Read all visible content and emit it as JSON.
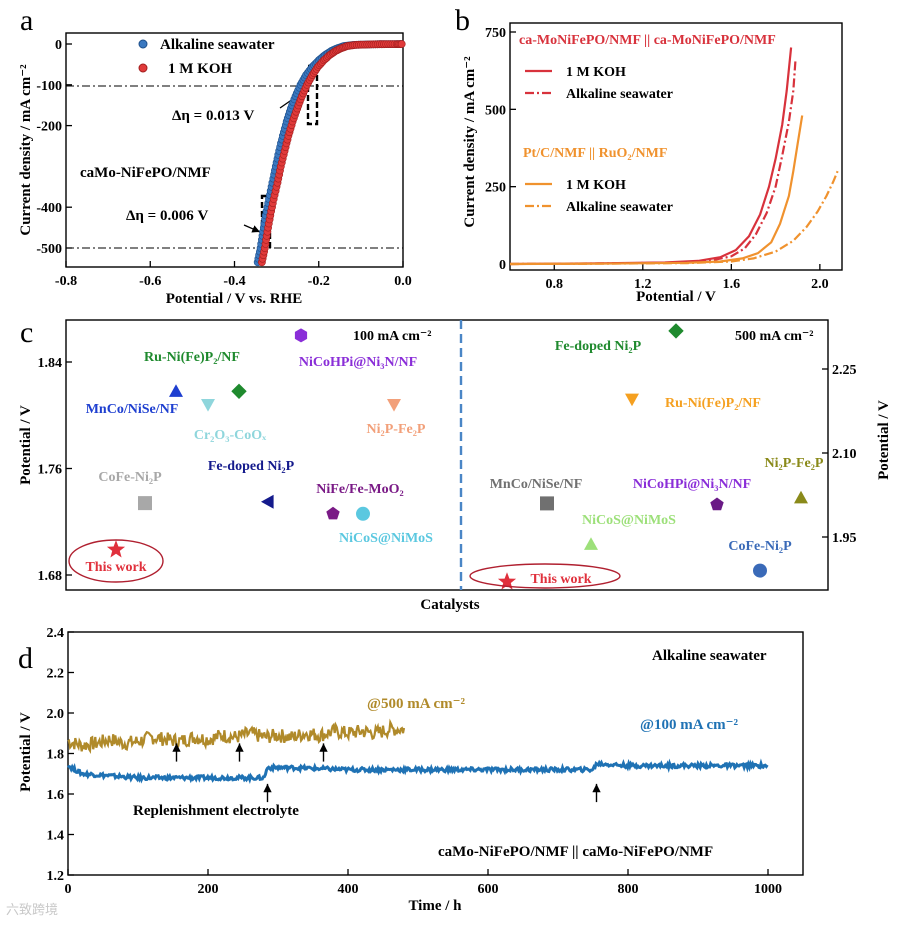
{
  "chart_data": [
    {
      "panel": "a",
      "type": "scatter",
      "title": "",
      "xlabel": "Potential / V vs. RHE",
      "ylabel": "Current density / mA cm⁻²",
      "xlim": [
        -0.8,
        0.0
      ],
      "ylim": [
        -540,
        10
      ],
      "xticks": [
        -0.8,
        -0.6,
        -0.4,
        -0.2,
        0.0
      ],
      "xtick_labels": [
        "-0.8",
        "-0.6",
        "-0.4",
        "-0.2",
        "0.0"
      ],
      "yticks": [
        0,
        -100,
        -200,
        -400,
        -500
      ],
      "ytick_labels": [
        "0",
        "-100",
        "-200",
        "-400",
        "-500"
      ],
      "annotations": [
        "Δη = 0.013 V",
        "Δη = 0.006 V",
        "caMo-NiFePO/NMF"
      ],
      "series": [
        {
          "name": "Alkaline seawater",
          "color": "#3a78c0",
          "x": [
            -0.345,
            -0.338,
            -0.332,
            -0.326,
            -0.318,
            -0.31,
            -0.302,
            -0.294,
            -0.285,
            -0.276,
            -0.266,
            -0.255,
            -0.243,
            -0.23,
            -0.215,
            -0.2,
            -0.185,
            -0.17,
            -0.155,
            -0.14,
            -0.12,
            -0.1,
            -0.08,
            -0.06,
            -0.04,
            -0.02,
            -0.005
          ],
          "y": [
            -535,
            -500,
            -460,
            -420,
            -380,
            -340,
            -300,
            -262,
            -225,
            -190,
            -158,
            -128,
            -100,
            -76,
            -56,
            -40,
            -27,
            -17,
            -10,
            -5,
            -2.5,
            -1.5,
            -1,
            -0.5,
            -0.3,
            -0.2,
            -0.1
          ]
        },
        {
          "name": "1 M KOH",
          "color": "#e03a3a",
          "x": [
            -0.335,
            -0.328,
            -0.322,
            -0.315,
            -0.307,
            -0.298,
            -0.29,
            -0.281,
            -0.272,
            -0.262,
            -0.251,
            -0.24,
            -0.228,
            -0.215,
            -0.202,
            -0.188,
            -0.174,
            -0.16,
            -0.146,
            -0.132,
            -0.115,
            -0.095,
            -0.075,
            -0.055,
            -0.035,
            -0.015,
            -0.003
          ],
          "y": [
            -535,
            -500,
            -460,
            -420,
            -380,
            -340,
            -300,
            -262,
            -225,
            -190,
            -158,
            -128,
            -100,
            -76,
            -56,
            -40,
            -27,
            -17,
            -10,
            -5,
            -2.5,
            -1.5,
            -1,
            -0.5,
            -0.3,
            -0.2,
            -0.1
          ]
        }
      ]
    },
    {
      "panel": "b",
      "type": "line",
      "xlabel": "Potential / V",
      "ylabel": "Current density / mA cm⁻²",
      "xlim": [
        0.6,
        2.1
      ],
      "ylim": [
        -10,
        760
      ],
      "xticks": [
        0.8,
        1.2,
        1.6,
        2.0
      ],
      "xtick_labels": [
        "0.8",
        "1.2",
        "1.6",
        "2.0"
      ],
      "yticks": [
        0,
        250,
        500,
        750
      ],
      "ytick_labels": [
        "0",
        "250",
        "500",
        "750"
      ],
      "legend_title_1": "ca-MoNiFePO/NMF || ca-MoNiFePO/NMF",
      "legend_title_2": "Pt/C/NMF || RuO₂/NMF",
      "series": [
        {
          "name": "1 M KOH",
          "group": "ca-MoNiFePO/NMF || ca-MoNiFePO/NMF",
          "color": "#d8323c",
          "dash": false,
          "x": [
            0.6,
            1.0,
            1.3,
            1.45,
            1.55,
            1.62,
            1.68,
            1.73,
            1.77,
            1.8,
            1.83,
            1.85,
            1.87
          ],
          "y": [
            0,
            2,
            5,
            10,
            22,
            45,
            90,
            160,
            250,
            340,
            450,
            560,
            700
          ]
        },
        {
          "name": "Alkaline seawater",
          "group": "ca-MoNiFePO/NMF || ca-MoNiFePO/NMF",
          "color": "#d8323c",
          "dash": true,
          "x": [
            0.6,
            1.0,
            1.3,
            1.5,
            1.6,
            1.66,
            1.71,
            1.76,
            1.8,
            1.83,
            1.86,
            1.88,
            1.89
          ],
          "y": [
            0,
            2,
            4,
            10,
            25,
            50,
            95,
            165,
            250,
            350,
            460,
            560,
            660
          ]
        },
        {
          "name": "1 M KOH",
          "group": "Pt/C/NMF || RuO₂/NMF",
          "color": "#f0922e",
          "dash": false,
          "x": [
            0.6,
            1.0,
            1.4,
            1.55,
            1.65,
            1.72,
            1.78,
            1.82,
            1.86,
            1.88,
            1.9,
            1.92
          ],
          "y": [
            0,
            1,
            4,
            8,
            18,
            35,
            70,
            130,
            220,
            300,
            390,
            480
          ]
        },
        {
          "name": "Alkaline seawater",
          "group": "Pt/C/NMF || RuO₂/NMF",
          "color": "#f0922e",
          "dash": true,
          "x": [
            0.6,
            1.0,
            1.4,
            1.6,
            1.7,
            1.8,
            1.88,
            1.94,
            1.99,
            2.03,
            2.06,
            2.08
          ],
          "y": [
            0,
            1,
            3,
            8,
            18,
            40,
            75,
            120,
            170,
            220,
            265,
            300
          ]
        }
      ]
    },
    {
      "panel": "c",
      "type": "scatter",
      "xlabel": "Catalysts",
      "ylabel_left": "Potential / V",
      "ylabel_right": "Potential / V",
      "left_title": "100 mA cm⁻²",
      "right_title": "500 mA cm⁻²",
      "left_ylim": [
        1.672,
        1.864
      ],
      "left_yticks": [
        1.68,
        1.76,
        1.84
      ],
      "left_ytick_labels": [
        "1.68",
        "1.76",
        "1.84"
      ],
      "right_ylim": [
        1.86,
        2.34
      ],
      "right_yticks": [
        1.95,
        2.1,
        2.25
      ],
      "right_ytick_labels": [
        "1.95",
        "2.10",
        "2.25"
      ],
      "left_points": [
        {
          "label": "This work",
          "value": 1.699,
          "marker": "star",
          "color": "#e0303c",
          "label_color": "#e0303c"
        },
        {
          "label": "CoFe-Ni₂P",
          "value": 1.734,
          "marker": "square",
          "color": "#a8a8a8",
          "label_color": "#a8a8a8"
        },
        {
          "label": "MnCo/NiSe/NF",
          "value": 1.818,
          "marker": "triangle-up",
          "color": "#1e3fd0",
          "label_color": "#1e3fd0"
        },
        {
          "label": "Cr₂O₃-CoOₓ",
          "value": 1.808,
          "marker": "triangle-down",
          "color": "#8fd6dc",
          "label_color": "#8fd6dc"
        },
        {
          "label": "Ru-Ni(Fe)P₂/NF",
          "value": 1.818,
          "marker": "diamond",
          "color": "#1f8a2e",
          "label_color": "#1f8a2e"
        },
        {
          "label": "Fe-doped Ni₂P",
          "value": 1.735,
          "marker": "triangle-left",
          "color": "#141a8c",
          "label_color": "#141a8c"
        },
        {
          "label": "NiCoHPi@Ni₃N/NF",
          "value": 1.86,
          "marker": "hexagon",
          "color": "#8a2ed8",
          "label_color": "#8a2ed8"
        },
        {
          "label": "NiFe/Fe-MoO₂",
          "value": 1.726,
          "marker": "pentagon",
          "color": "#7a1a86",
          "label_color": "#7a1a86"
        },
        {
          "label": "NiCoS@NiMoS",
          "value": 1.726,
          "marker": "circle",
          "color": "#5bc8e0",
          "label_color": "#5bc8e0"
        },
        {
          "label": "Ni₂P-Fe₂P",
          "value": 1.808,
          "marker": "triangle-down",
          "color": "#f2a07a",
          "label_color": "#f2a07a"
        }
      ],
      "right_points": [
        {
          "label": "This work",
          "value": 1.87,
          "marker": "star",
          "color": "#e0303c",
          "label_color": "#e0303c"
        },
        {
          "label": "MnCo/NiSe/NF",
          "value": 2.01,
          "marker": "square",
          "color": "#707070",
          "label_color": "#707070"
        },
        {
          "label": "NiCoS@NiMoS",
          "value": 1.937,
          "marker": "triangle-up",
          "color": "#9de07a",
          "label_color": "#9de07a"
        },
        {
          "label": "Fe-doped Ni₂P",
          "value": 2.318,
          "marker": "diamond",
          "color": "#1f8a2e",
          "label_color": "#1f8a2e"
        },
        {
          "label": "Ru-Ni(Fe)P₂/NF",
          "value": 2.196,
          "marker": "triangle-down",
          "color": "#f5a020",
          "label_color": "#f5a020"
        },
        {
          "label": "NiCoHPi@Ni₃N/NF",
          "value": 2.008,
          "marker": "pentagon",
          "color": "#6a1a86",
          "label_color": "#8a2ed8"
        },
        {
          "label": "CoFe-Ni₂P",
          "value": 1.89,
          "marker": "circle",
          "color": "#3a6ab8",
          "label_color": "#3a6ab8"
        },
        {
          "label": "Ni₂P-Fe₂P",
          "value": 2.02,
          "marker": "triangle-up",
          "color": "#8a8a1a",
          "label_color": "#8a8a1a"
        }
      ]
    },
    {
      "panel": "d",
      "type": "line",
      "title": "Alkaline seawater",
      "subtitle": "caMo-NiFePO/NMF || caMo-NiFePO/NMF",
      "xlabel": "Time / h",
      "ylabel": "Potential / V",
      "xlim": [
        0,
        1050
      ],
      "ylim": [
        1.2,
        2.4
      ],
      "xticks": [
        0,
        200,
        400,
        600,
        800,
        1000
      ],
      "xtick_labels": [
        "0",
        "200",
        "400",
        "600",
        "800",
        "1000"
      ],
      "yticks": [
        1.2,
        1.4,
        1.6,
        1.8,
        2.0,
        2.2,
        2.4
      ],
      "ytick_labels": [
        "1.2",
        "1.4",
        "1.6",
        "1.8",
        "2.0",
        "2.2",
        "2.4"
      ],
      "annotation": "Replenishment electrolyte",
      "arrows_500": [
        155,
        245,
        365
      ],
      "arrows_100": [
        285,
        755
      ],
      "series": [
        {
          "name": "@500 mA cm⁻²",
          "color": "#b08a2a",
          "x": [
            0,
            20,
            40,
            60,
            80,
            100,
            120,
            140,
            160,
            180,
            200,
            220,
            240,
            260,
            280,
            300,
            320,
            340,
            360,
            380,
            400,
            420,
            440,
            460,
            480
          ],
          "y": [
            1.86,
            1.84,
            1.85,
            1.87,
            1.85,
            1.86,
            1.88,
            1.87,
            1.86,
            1.88,
            1.87,
            1.89,
            1.88,
            1.9,
            1.88,
            1.89,
            1.88,
            1.9,
            1.89,
            1.91,
            1.9,
            1.91,
            1.9,
            1.92,
            1.92
          ]
        },
        {
          "name": "@100 mA cm⁻²",
          "color": "#1f72b4",
          "x": [
            0,
            20,
            60,
            100,
            150,
            200,
            250,
            280,
            285,
            320,
            400,
            500,
            600,
            700,
            750,
            755,
            800,
            850,
            900,
            950,
            1000
          ],
          "y": [
            1.74,
            1.7,
            1.69,
            1.68,
            1.68,
            1.68,
            1.68,
            1.68,
            1.73,
            1.73,
            1.72,
            1.72,
            1.72,
            1.72,
            1.72,
            1.75,
            1.74,
            1.74,
            1.74,
            1.74,
            1.74
          ]
        }
      ]
    }
  ],
  "labels": {
    "panel_a": "a",
    "panel_b": "b",
    "panel_c": "c",
    "panel_d": "d"
  },
  "watermark": "六致跨境"
}
